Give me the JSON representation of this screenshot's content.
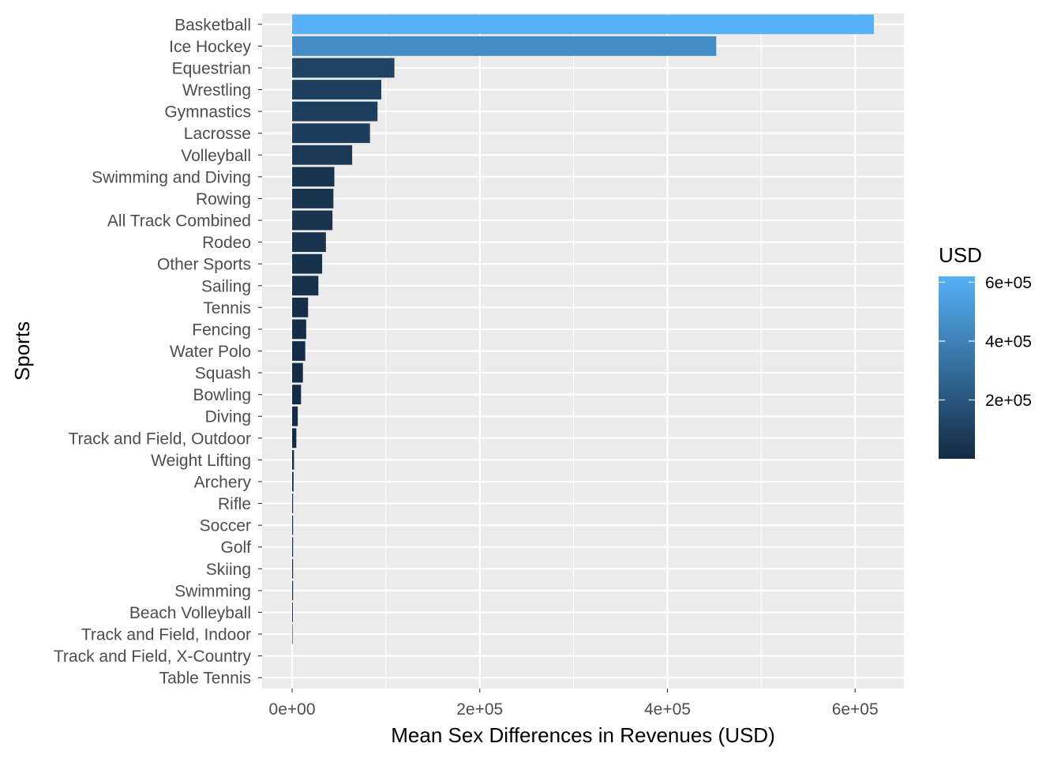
{
  "chart_data": {
    "type": "bar",
    "orientation": "horizontal",
    "xlabel": "Mean Sex Differences in Revenues (USD)",
    "ylabel": "Sports",
    "xlim": [
      -32000,
      652000
    ],
    "x_ticks": [
      0,
      200000,
      400000,
      600000
    ],
    "x_tick_labels": [
      "0e+00",
      "2e+05",
      "4e+05",
      "6e+05"
    ],
    "grid": true,
    "categories": [
      "Basketball",
      "Ice Hockey",
      "Equestrian",
      "Wrestling",
      "Gymnastics",
      "Lacrosse",
      "Volleyball",
      "Swimming and Diving",
      "Rowing",
      "All Track Combined",
      "Rodeo",
      "Other Sports",
      "Sailing",
      "Tennis",
      "Fencing",
      "Water Polo",
      "Squash",
      "Bowling",
      "Diving",
      "Track and Field, Outdoor",
      "Weight Lifting",
      "Archery",
      "Rifle",
      "Soccer",
      "Golf",
      "Skiing",
      "Swimming",
      "Beach Volleyball",
      "Track and Field, Indoor",
      "Track and Field, X-Country",
      "Table Tennis"
    ],
    "values": [
      620000,
      452000,
      109000,
      95000,
      91000,
      83000,
      64000,
      45000,
      44000,
      43000,
      36000,
      32000,
      28000,
      17000,
      15000,
      14000,
      11500,
      9500,
      6000,
      4500,
      2000,
      1500,
      1000,
      1000,
      1000,
      1000,
      1000,
      800,
      500,
      0,
      0
    ],
    "legend": {
      "title": "USD",
      "position": "right",
      "type": "colorbar",
      "range": [
        0,
        620000
      ],
      "ticks": [
        200000,
        400000,
        600000
      ],
      "tick_labels": [
        "2e+05",
        "4e+05",
        "6e+05"
      ],
      "low_color": "#132B43",
      "high_color": "#56B1F7"
    },
    "colors": {
      "panel_background": "#EBEBEB",
      "grid_major": "#FFFFFF",
      "axis_text": "#4D4D4D",
      "title_text": "#000000"
    }
  }
}
